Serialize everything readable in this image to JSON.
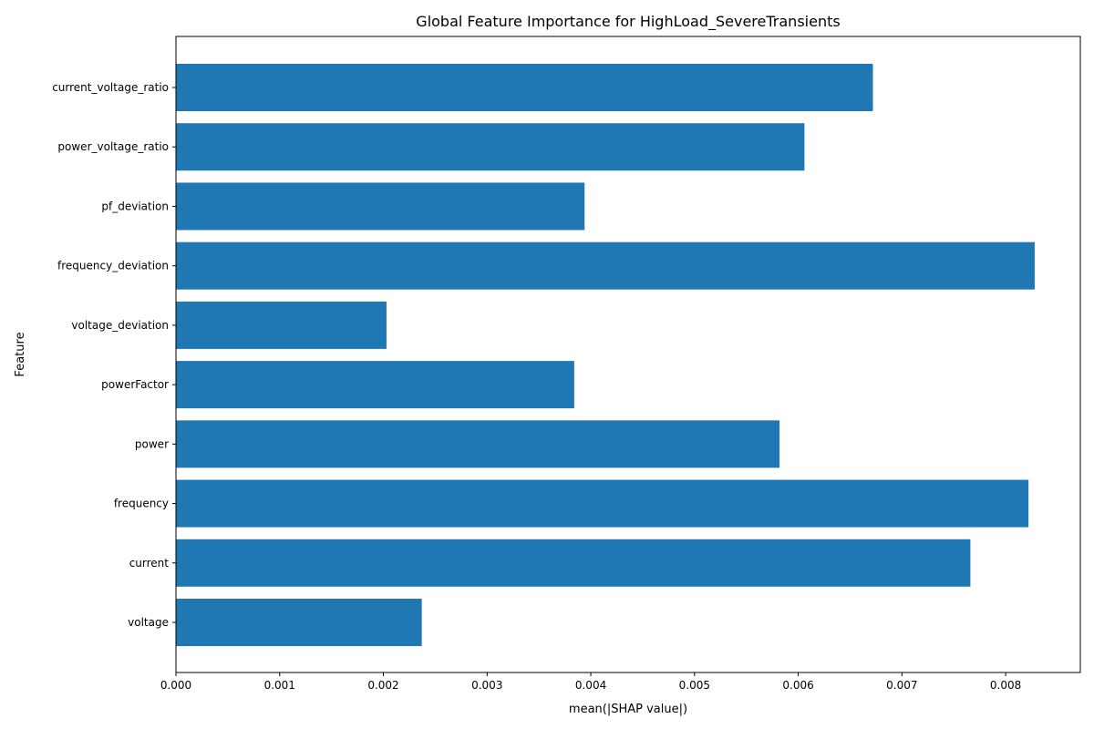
{
  "chart_data": {
    "type": "bar",
    "orientation": "horizontal",
    "title": "Global Feature Importance for HighLoad_SevereTransients",
    "xlabel": "mean(|SHAP value|)",
    "ylabel": "Feature",
    "categories": [
      "voltage",
      "current",
      "frequency",
      "power",
      "powerFactor",
      "voltage_deviation",
      "frequency_deviation",
      "pf_deviation",
      "power_voltage_ratio",
      "current_voltage_ratio"
    ],
    "values": [
      0.00237,
      0.00766,
      0.00822,
      0.00582,
      0.00384,
      0.00203,
      0.00828,
      0.00394,
      0.00606,
      0.00672
    ],
    "xlim": [
      0,
      0.00872
    ],
    "xticks": [
      0.0,
      0.001,
      0.002,
      0.003,
      0.004,
      0.005,
      0.006,
      0.007,
      0.008
    ],
    "xtick_labels": [
      "0.000",
      "0.001",
      "0.002",
      "0.003",
      "0.004",
      "0.005",
      "0.006",
      "0.007",
      "0.008"
    ],
    "grid": false,
    "bar_color": "#1f77b4"
  }
}
